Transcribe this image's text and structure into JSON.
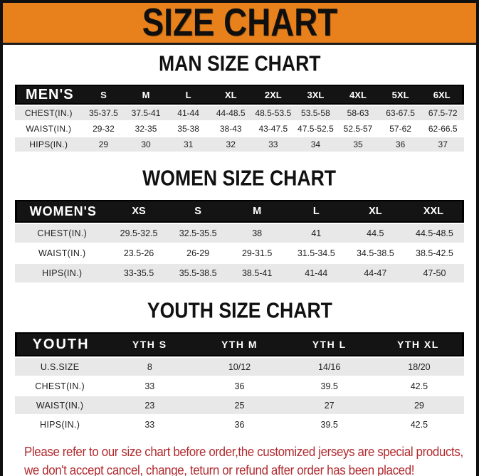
{
  "banner": {
    "title": "SIZE CHART"
  },
  "colors": {
    "banner_orange": "#E8811C",
    "header_black": "#141414",
    "row_gray": "#E8E8E8",
    "note_red": "#B12B2F"
  },
  "sections": [
    {
      "heading": "MAN SIZE CHART",
      "table": {
        "header_label": "MEN'S",
        "columns": [
          "S",
          "M",
          "L",
          "XL",
          "2XL",
          "3XL",
          "4XL",
          "5XL",
          "6XL"
        ],
        "rows": [
          {
            "label": "CHEST(IN.)",
            "values": [
              "35-37.5",
              "37.5-41",
              "41-44",
              "44-48.5",
              "48.5-53.5",
              "53.5-58",
              "58-63",
              "63-67.5",
              "67.5-72"
            ]
          },
          {
            "label": "WAIST(IN.)",
            "values": [
              "29-32",
              "32-35",
              "35-38",
              "38-43",
              "43-47.5",
              "47.5-52.5",
              "52.5-57",
              "57-62",
              "62-66.5"
            ]
          },
          {
            "label": "HIPS(IN.)",
            "values": [
              "29",
              "30",
              "31",
              "32",
              "33",
              "34",
              "35",
              "36",
              "37"
            ]
          }
        ]
      }
    },
    {
      "heading": "WOMEN SIZE CHART",
      "table": {
        "header_label": "WOMEN'S",
        "columns": [
          "XS",
          "S",
          "M",
          "L",
          "XL",
          "XXL"
        ],
        "rows": [
          {
            "label": "CHEST(IN.)",
            "values": [
              "29.5-32.5",
              "32.5-35.5",
              "38",
              "41",
              "44.5",
              "44.5-48.5"
            ]
          },
          {
            "label": "WAIST(IN.)",
            "values": [
              "23.5-26",
              "26-29",
              "29-31.5",
              "31.5-34.5",
              "34.5-38.5",
              "38.5-42.5"
            ]
          },
          {
            "label": "HIPS(IN.)",
            "values": [
              "33-35.5",
              "35.5-38.5",
              "38.5-41",
              "41-44",
              "44-47",
              "47-50"
            ]
          }
        ]
      }
    },
    {
      "heading": "YOUTH SIZE CHART",
      "table": {
        "header_label": "YOUTH",
        "columns": [
          "YTH S",
          "YTH M",
          "YTH L",
          "YTH XL"
        ],
        "rows": [
          {
            "label": "U.S.SIZE",
            "values": [
              "8",
              "10/12",
              "14/16",
              "18/20"
            ]
          },
          {
            "label": "CHEST(IN.)",
            "values": [
              "33",
              "36",
              "39.5",
              "42.5"
            ]
          },
          {
            "label": "WAIST(IN.)",
            "values": [
              "23",
              "25",
              "27",
              "29"
            ]
          },
          {
            "label": "HIPS(IN.)",
            "values": [
              "33",
              "36",
              "39.5",
              "42.5"
            ]
          }
        ]
      }
    }
  ],
  "footer": {
    "line1": "Please refer to our size chart before order,the customized jerseys are special products,",
    "line2": "we don't accept cancel, change, teturn or refund after order has been placed!"
  }
}
